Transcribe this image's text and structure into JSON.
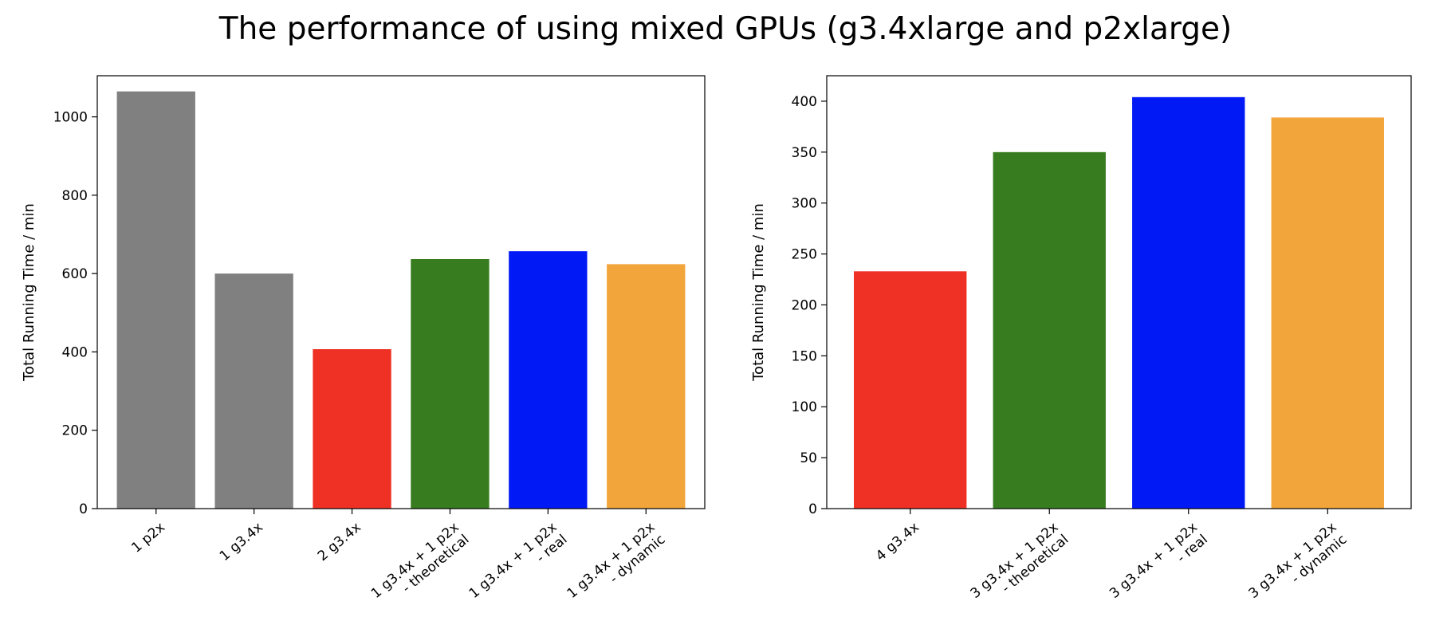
{
  "figure": {
    "title": "The performance of using mixed GPUs (g3.4xlarge and p2xlarge)"
  },
  "chart_data": [
    {
      "type": "bar",
      "title": "",
      "xlabel": "",
      "ylabel": "Total Running Time / min",
      "ylim": [
        0,
        1105
      ],
      "yticks": [
        0,
        200,
        400,
        600,
        800,
        1000
      ],
      "grid": false,
      "categories": [
        [
          "1 p2x"
        ],
        [
          "1 g3.4x"
        ],
        [
          "2 g3.4x"
        ],
        [
          "1 g3.4x + 1 p2x",
          "- theoretical"
        ],
        [
          "1 g3.4x + 1 p2x",
          "- real"
        ],
        [
          "1 g3.4x + 1 p2x",
          "- dynamic"
        ]
      ],
      "values": [
        1065,
        600,
        407,
        637,
        657,
        624
      ],
      "colors": [
        "#808080",
        "#808080",
        "#ee3124",
        "#387c20",
        "#0019f5",
        "#f2a53b"
      ]
    },
    {
      "type": "bar",
      "title": "",
      "xlabel": "",
      "ylabel": "Total Running Time / min",
      "ylim": [
        0,
        425
      ],
      "yticks": [
        0,
        50,
        100,
        150,
        200,
        250,
        300,
        350,
        400
      ],
      "grid": false,
      "categories": [
        [
          "4 g3.4x"
        ],
        [
          "3 g3.4x + 1 p2x",
          "- theoretical"
        ],
        [
          "3 g3.4x + 1 p2x",
          "- real"
        ],
        [
          "3 g3.4x + 1 p2x",
          "- dynamic"
        ]
      ],
      "values": [
        233,
        350,
        404,
        384
      ],
      "colors": [
        "#ee3124",
        "#387c20",
        "#0019f5",
        "#f2a53b"
      ]
    }
  ]
}
